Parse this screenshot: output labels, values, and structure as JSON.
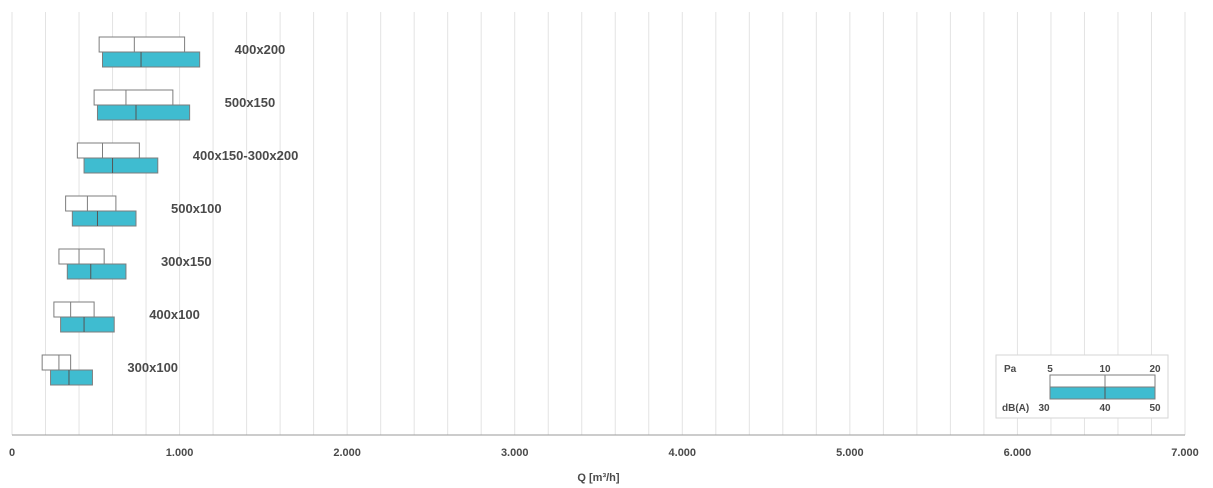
{
  "chart_data": {
    "type": "bar",
    "subtype": "floating-range",
    "xlabel": "Q [m³/h]",
    "xlim": [
      0,
      7000
    ],
    "xticks": [
      0,
      1000,
      2000,
      3000,
      4000,
      5000,
      6000,
      7000
    ],
    "xtick_labels": [
      "0",
      "1.000",
      "2.000",
      "3.000",
      "4.000",
      "5.000",
      "6.000",
      "7.000"
    ],
    "grid": true,
    "grid_step": 200,
    "colors": {
      "db_bar": "#3fbcd0",
      "pa_bar": "#ffffff",
      "outline": "#7d7d7d",
      "grid": "#e3e3e3"
    },
    "categories": [
      "400x200",
      "500x150",
      "400x150-300x200",
      "500x100",
      "300x150",
      "400x100",
      "300x100"
    ],
    "series": [
      {
        "name": "Pa",
        "markers": [
          5,
          10,
          20
        ],
        "points": [
          [
            520,
            730,
            1030
          ],
          [
            490,
            680,
            960
          ],
          [
            390,
            540,
            760
          ],
          [
            320,
            450,
            620
          ],
          [
            280,
            400,
            550
          ],
          [
            250,
            350,
            490
          ],
          [
            180,
            280,
            350
          ]
        ]
      },
      {
        "name": "dB(A)",
        "markers": [
          30,
          40,
          50
        ],
        "points": [
          [
            540,
            770,
            1120
          ],
          [
            510,
            740,
            1060
          ],
          [
            430,
            600,
            870
          ],
          [
            360,
            510,
            740
          ],
          [
            330,
            470,
            680
          ],
          [
            290,
            430,
            610
          ],
          [
            230,
            340,
            480
          ]
        ]
      }
    ],
    "legend": {
      "position": "bottom-right",
      "pa_label": "Pa",
      "pa_values": [
        "5",
        "10",
        "20"
      ],
      "db_label": "dB(A)",
      "db_values": [
        "30",
        "40",
        "50"
      ]
    }
  }
}
